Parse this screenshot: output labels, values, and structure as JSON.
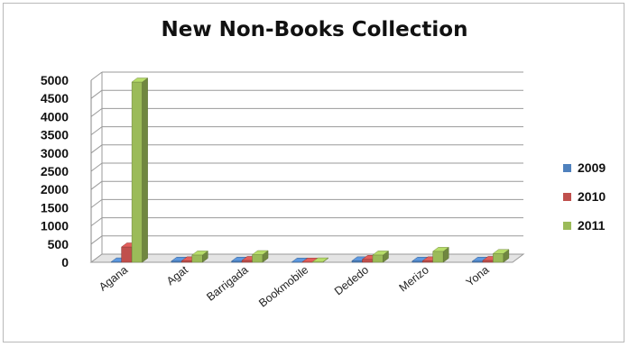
{
  "chart_data": {
    "type": "bar",
    "title": "New Non-Books Collection",
    "xlabel": "",
    "ylabel": "",
    "categories": [
      "Agana",
      "Agat",
      "Barrigada",
      "Bookmobile",
      "Dededo",
      "Merizo",
      "Yona"
    ],
    "series": [
      {
        "name": "2009",
        "values": [
          10,
          30,
          30,
          5,
          40,
          30,
          30
        ],
        "color": "#4f81bd"
      },
      {
        "name": "2010",
        "values": [
          420,
          40,
          50,
          5,
          80,
          40,
          50
        ],
        "color": "#c0504d"
      },
      {
        "name": "2011",
        "values": [
          4950,
          200,
          210,
          10,
          200,
          300,
          240
        ],
        "color": "#9bbb59"
      }
    ],
    "ylim": [
      0,
      5000
    ],
    "yticks": [
      0,
      500,
      1000,
      1500,
      2000,
      2500,
      3000,
      3500,
      4000,
      4500,
      5000
    ],
    "grid": true,
    "legend": "right",
    "style": "3d-clustered-column"
  }
}
